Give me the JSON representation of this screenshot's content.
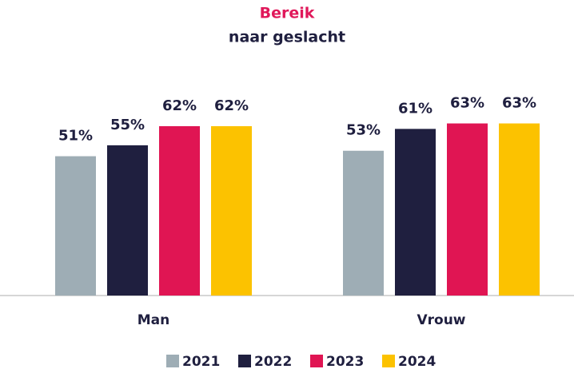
{
  "chart_data": {
    "type": "bar",
    "title": "Bereik",
    "subtitle": "naar geslacht",
    "title_color": "#e0185a",
    "categories": [
      "Man",
      "Vrouw"
    ],
    "series": [
      {
        "name": "2021",
        "color": "#9eadb5",
        "values": [
          51,
          53
        ],
        "value_labels": [
          "51%",
          "53%"
        ]
      },
      {
        "name": "2022",
        "color": "#1f1f3f",
        "values": [
          55,
          61
        ],
        "value_labels": [
          "55%",
          "61%"
        ]
      },
      {
        "name": "2023",
        "color": "#e01553",
        "values": [
          62,
          63
        ],
        "value_labels": [
          "62%",
          "63%"
        ]
      },
      {
        "name": "2024",
        "color": "#fcc200",
        "values": [
          62,
          63
        ],
        "value_labels": [
          "62%",
          "63%"
        ]
      }
    ],
    "ylim": [
      0,
      100
    ],
    "legend": "bottom"
  }
}
